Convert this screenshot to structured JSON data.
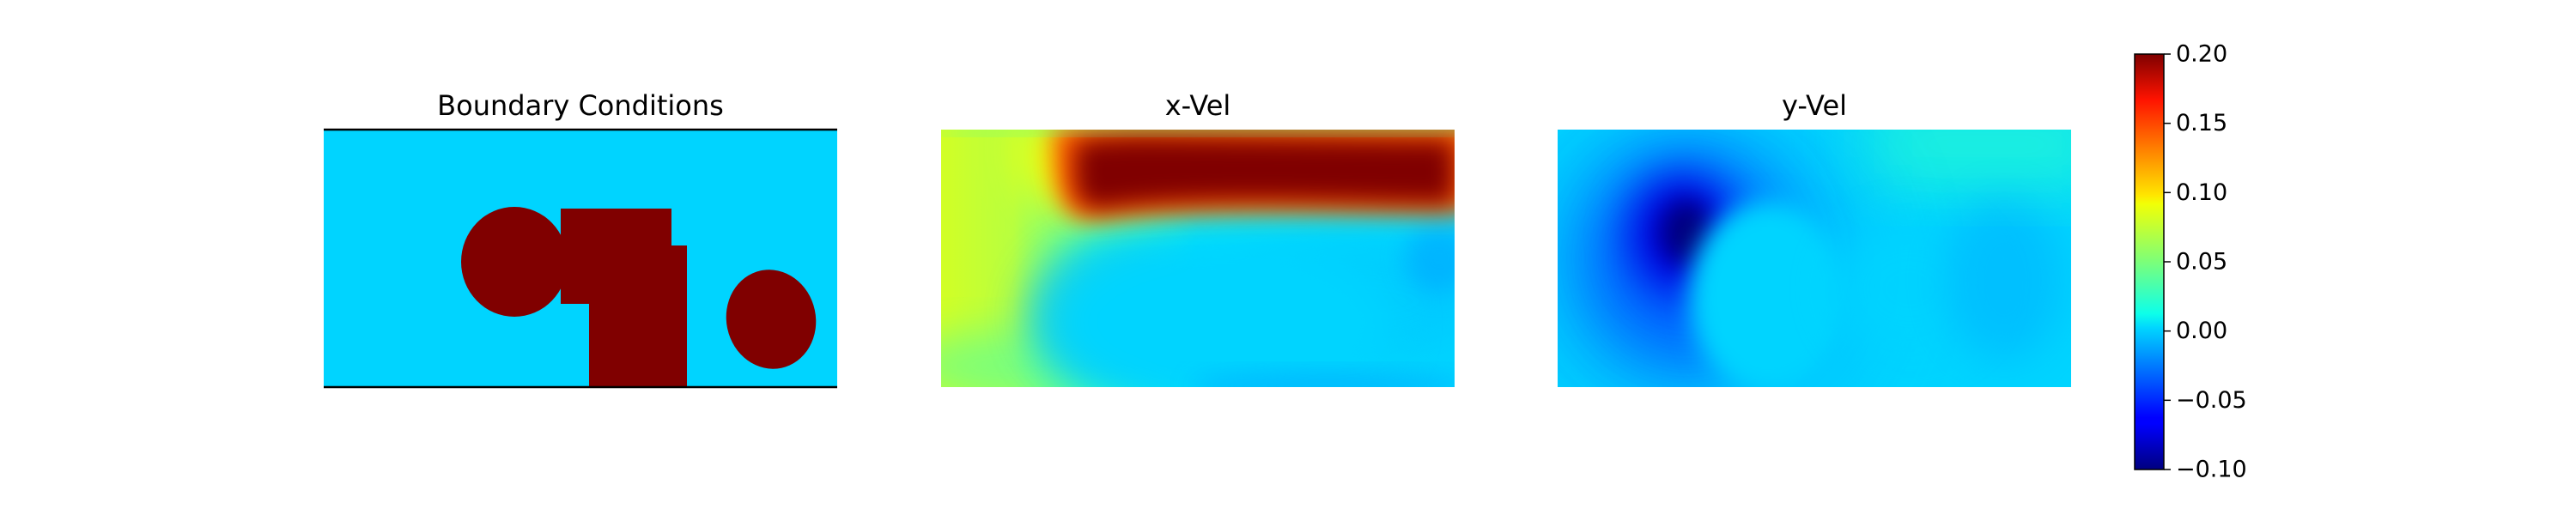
{
  "chart_data": {
    "type": "heatmap",
    "colormap": "jet",
    "panels": [
      {
        "title": "Boundary Conditions",
        "field": "mask",
        "axes_visible": false,
        "frame": "top and bottom edges only"
      },
      {
        "title": "x-Vel",
        "field": "u",
        "axes_visible": false
      },
      {
        "title": "y-Vel",
        "field": "v",
        "axes_visible": false
      }
    ],
    "colorbar": {
      "vmin": -0.1,
      "vmax": 0.2,
      "ticks": [
        -0.1,
        -0.05,
        0.0,
        0.05,
        0.1,
        0.15,
        0.2
      ],
      "tick_labels": [
        "−0.10",
        "−0.05",
        "0.00",
        "0.05",
        "0.10",
        "0.15",
        "0.20"
      ]
    },
    "obstacles": [
      {
        "shape": "ellipse",
        "label": "left round obstacle"
      },
      {
        "shape": "rectangle",
        "label": "central stepped block"
      },
      {
        "shape": "ellipse",
        "label": "right oval obstacle"
      }
    ],
    "field_values": {
      "mask_background": 0.0,
      "mask_obstacle": 0.2,
      "u_jet_core": 0.2,
      "u_inlet_upper": 0.1,
      "u_inlet_lower": 0.07,
      "u_wake": 0.0,
      "v_min": -0.1,
      "v_upper_right": 0.04,
      "v_background": 0.0
    }
  }
}
